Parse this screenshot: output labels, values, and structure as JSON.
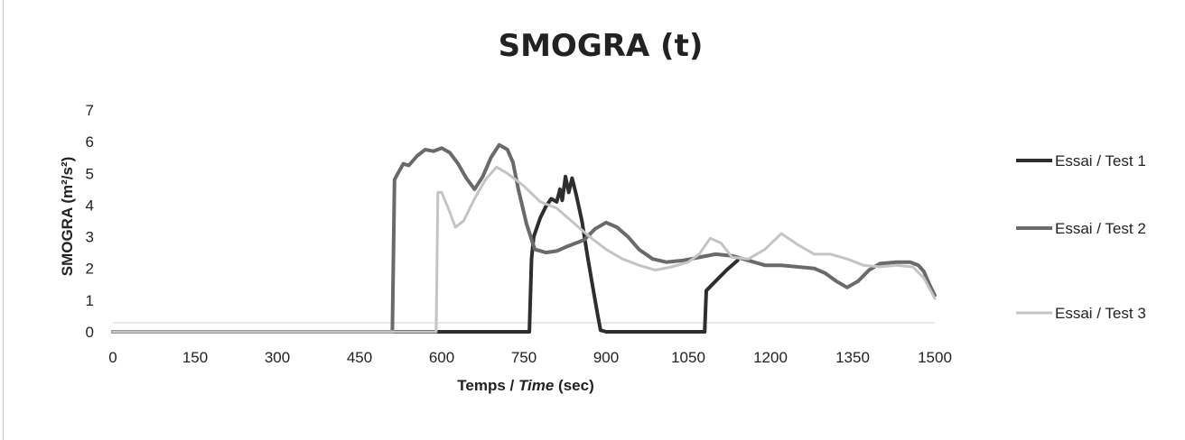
{
  "chart_data": {
    "type": "line",
    "title": "SMOGRA (t)",
    "xlabel_parts": [
      "Temps / ",
      "Time",
      " (sec)"
    ],
    "ylabel": "SMOGRA (m²/s²)",
    "xlim": [
      0,
      1500
    ],
    "ylim": [
      0,
      7
    ],
    "xticks": [
      0,
      150,
      300,
      450,
      600,
      750,
      900,
      1050,
      1200,
      1350,
      1500
    ],
    "yticks": [
      0,
      1,
      2,
      3,
      4,
      5,
      6,
      7
    ],
    "grid": false,
    "legend_position": "right",
    "series": [
      {
        "name": "Essai / Test 1",
        "color": "#2e2e2e",
        "width": 4,
        "points": [
          [
            0,
            0
          ],
          [
            200,
            0
          ],
          [
            400,
            0
          ],
          [
            760,
            0
          ],
          [
            764,
            2.3
          ],
          [
            768,
            3.0
          ],
          [
            780,
            3.6
          ],
          [
            790,
            3.95
          ],
          [
            800,
            4.2
          ],
          [
            810,
            4.1
          ],
          [
            816,
            4.5
          ],
          [
            820,
            4.15
          ],
          [
            826,
            4.9
          ],
          [
            832,
            4.4
          ],
          [
            838,
            4.85
          ],
          [
            846,
            4.3
          ],
          [
            856,
            3.5
          ],
          [
            866,
            2.4
          ],
          [
            876,
            1.4
          ],
          [
            884,
            0.6
          ],
          [
            890,
            0.05
          ],
          [
            900,
            0
          ],
          [
            1000,
            0
          ],
          [
            1080,
            0
          ],
          [
            1083,
            1.3
          ],
          [
            1100,
            1.6
          ],
          [
            1120,
            1.95
          ],
          [
            1140,
            2.25
          ]
        ]
      },
      {
        "name": "Essai / Test 2",
        "color": "#6a6a6a",
        "width": 4,
        "points": [
          [
            0,
            0
          ],
          [
            200,
            0
          ],
          [
            510,
            0
          ],
          [
            514,
            4.8
          ],
          [
            520,
            5.0
          ],
          [
            530,
            5.3
          ],
          [
            540,
            5.25
          ],
          [
            555,
            5.55
          ],
          [
            570,
            5.75
          ],
          [
            585,
            5.7
          ],
          [
            600,
            5.8
          ],
          [
            615,
            5.65
          ],
          [
            630,
            5.3
          ],
          [
            645,
            4.85
          ],
          [
            660,
            4.5
          ],
          [
            675,
            4.9
          ],
          [
            690,
            5.5
          ],
          [
            705,
            5.9
          ],
          [
            720,
            5.75
          ],
          [
            730,
            5.35
          ],
          [
            740,
            4.5
          ],
          [
            755,
            3.4
          ],
          [
            770,
            2.6
          ],
          [
            790,
            2.5
          ],
          [
            810,
            2.55
          ],
          [
            830,
            2.7
          ],
          [
            860,
            2.9
          ],
          [
            880,
            3.25
          ],
          [
            900,
            3.45
          ],
          [
            920,
            3.3
          ],
          [
            940,
            3.0
          ],
          [
            960,
            2.6
          ],
          [
            985,
            2.3
          ],
          [
            1010,
            2.2
          ],
          [
            1040,
            2.25
          ],
          [
            1070,
            2.35
          ],
          [
            1100,
            2.45
          ],
          [
            1130,
            2.4
          ],
          [
            1160,
            2.25
          ],
          [
            1190,
            2.1
          ],
          [
            1220,
            2.1
          ],
          [
            1250,
            2.05
          ],
          [
            1280,
            2.0
          ],
          [
            1300,
            1.85
          ],
          [
            1320,
            1.6
          ],
          [
            1340,
            1.4
          ],
          [
            1360,
            1.6
          ],
          [
            1380,
            1.95
          ],
          [
            1400,
            2.15
          ],
          [
            1430,
            2.2
          ],
          [
            1455,
            2.2
          ],
          [
            1470,
            2.1
          ],
          [
            1480,
            1.9
          ],
          [
            1490,
            1.5
          ],
          [
            1500,
            1.15
          ]
        ]
      },
      {
        "name": "Essai / Test 3",
        "color": "#c4c4c4",
        "width": 3,
        "points": [
          [
            0,
            0
          ],
          [
            200,
            0
          ],
          [
            590,
            0
          ],
          [
            593,
            4.4
          ],
          [
            600,
            4.4
          ],
          [
            612,
            3.9
          ],
          [
            625,
            3.3
          ],
          [
            640,
            3.5
          ],
          [
            660,
            4.2
          ],
          [
            680,
            4.8
          ],
          [
            700,
            5.2
          ],
          [
            720,
            5.0
          ],
          [
            750,
            4.6
          ],
          [
            780,
            4.1
          ],
          [
            810,
            3.9
          ],
          [
            840,
            3.45
          ],
          [
            870,
            3.0
          ],
          [
            900,
            2.6
          ],
          [
            930,
            2.3
          ],
          [
            960,
            2.1
          ],
          [
            990,
            1.95
          ],
          [
            1020,
            2.05
          ],
          [
            1050,
            2.2
          ],
          [
            1070,
            2.45
          ],
          [
            1090,
            2.95
          ],
          [
            1110,
            2.8
          ],
          [
            1130,
            2.35
          ],
          [
            1160,
            2.3
          ],
          [
            1190,
            2.6
          ],
          [
            1220,
            3.1
          ],
          [
            1250,
            2.75
          ],
          [
            1280,
            2.45
          ],
          [
            1310,
            2.45
          ],
          [
            1340,
            2.3
          ],
          [
            1370,
            2.1
          ],
          [
            1400,
            2.05
          ],
          [
            1430,
            2.1
          ],
          [
            1460,
            2.05
          ],
          [
            1480,
            1.7
          ],
          [
            1500,
            1.05
          ]
        ]
      }
    ]
  }
}
